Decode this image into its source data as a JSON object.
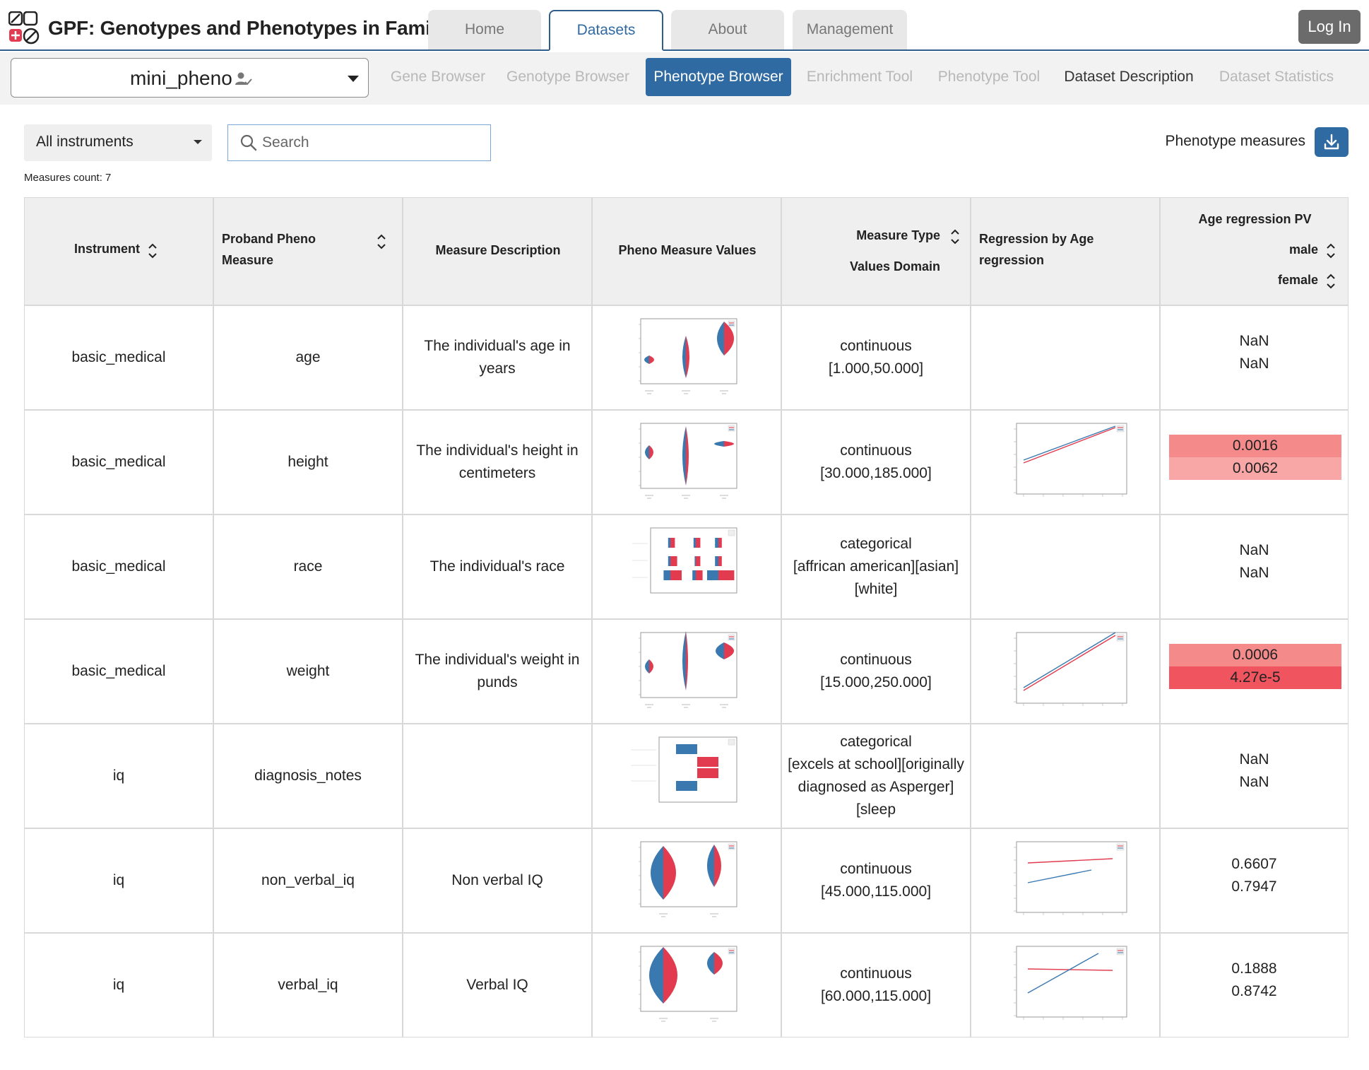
{
  "app": {
    "title": "GPF: Genotypes and Phenotypes in Families",
    "nav_tabs": [
      {
        "label": "Home",
        "active": false
      },
      {
        "label": "Datasets",
        "active": true
      },
      {
        "label": "About",
        "active": false
      },
      {
        "label": "Management",
        "active": false
      }
    ],
    "login_label": "Log In"
  },
  "dataset": {
    "selected": "mini_pheno",
    "tool_tabs": [
      {
        "label": "Gene Browser",
        "state": "disabled"
      },
      {
        "label": "Genotype Browser",
        "state": "disabled"
      },
      {
        "label": "Phenotype Browser",
        "state": "active"
      },
      {
        "label": "Enrichment Tool",
        "state": "disabled"
      },
      {
        "label": "Phenotype Tool",
        "state": "disabled"
      },
      {
        "label": "Dataset Description",
        "state": "enabled"
      },
      {
        "label": "Dataset Statistics",
        "state": "disabled"
      }
    ]
  },
  "filters": {
    "instrument_selected": "All instruments",
    "search_placeholder": "Search",
    "search_value": "",
    "measures_label": "Phenotype measures",
    "measures_count": "Measures count: 7"
  },
  "table": {
    "headers": {
      "instrument": "Instrument",
      "measure_line1": "Proband Pheno",
      "measure_line2": "Measure",
      "description": "Measure Description",
      "values": "Pheno Measure Values",
      "type": "Measure Type",
      "domain": "Values Domain",
      "regression_line1": "Regression by Age",
      "regression_line2": "regression",
      "pv_title": "Age regression PV",
      "pv_male": "male",
      "pv_female": "female"
    },
    "colors": {
      "male": "#3a78b0",
      "female": "#e23b4f",
      "pv_strong": "#f0545f",
      "pv_mid": "#f58a8a",
      "pv_light": "#f8a6a6"
    },
    "rows": [
      {
        "instrument": "basic_medical",
        "measure": "age",
        "description": "The individual's age in years",
        "type": "continuous",
        "domain": "[1.000,50.000]",
        "plot": "violin-age",
        "regression": false,
        "pv_male": "NaN",
        "pv_female": "NaN",
        "pv_male_level": "none",
        "pv_female_level": "none"
      },
      {
        "instrument": "basic_medical",
        "measure": "height",
        "description": "The individual's height in centimeters",
        "type": "continuous",
        "domain": "[30.000,185.000]",
        "plot": "violin-height",
        "regression": "parallel-up",
        "pv_male": "0.0016",
        "pv_female": "0.0062",
        "pv_male_level": "mid",
        "pv_female_level": "light"
      },
      {
        "instrument": "basic_medical",
        "measure": "race",
        "description": "The individual's race",
        "type": "categorical",
        "domain": "[affrican american][asian][white]",
        "plot": "bars-race",
        "regression": false,
        "pv_male": "NaN",
        "pv_female": "NaN",
        "pv_male_level": "none",
        "pv_female_level": "none"
      },
      {
        "instrument": "basic_medical",
        "measure": "weight",
        "description": "The individual's weight in punds",
        "type": "continuous",
        "domain": "[15.000,250.000]",
        "plot": "violin-weight",
        "regression": "parallel-steep",
        "pv_male": "0.0006",
        "pv_female": "4.27e-5",
        "pv_male_level": "mid",
        "pv_female_level": "strong"
      },
      {
        "instrument": "iq",
        "measure": "diagnosis_notes",
        "description": "",
        "type": "categorical",
        "domain": "[excels at school][originally diagnosed as Asperger][sleep",
        "plot": "hbars-notes",
        "regression": false,
        "pv_male": "NaN",
        "pv_female": "NaN",
        "pv_male_level": "none",
        "pv_female_level": "none"
      },
      {
        "instrument": "iq",
        "measure": "non_verbal_iq",
        "description": "Non verbal IQ",
        "type": "continuous",
        "domain": "[45.000,115.000]",
        "plot": "violin-iq-nv",
        "regression": "diverge",
        "pv_male": "0.6607",
        "pv_female": "0.7947",
        "pv_male_level": "none",
        "pv_female_level": "none"
      },
      {
        "instrument": "iq",
        "measure": "verbal_iq",
        "description": "Verbal IQ",
        "type": "continuous",
        "domain": "[60.000,115.000]",
        "plot": "violin-iq-v",
        "regression": "cross",
        "pv_male": "0.1888",
        "pv_female": "0.8742",
        "pv_male_level": "none",
        "pv_female_level": "none"
      }
    ]
  }
}
